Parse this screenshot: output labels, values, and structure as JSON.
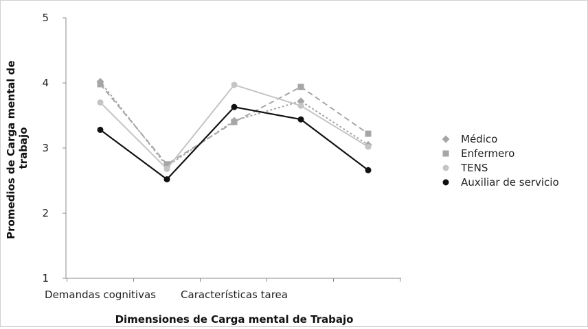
{
  "chart_data": {
    "type": "line",
    "title": "",
    "xlabel": "Dimensiones de Carga mental de Trabajo",
    "ylabel_lines": [
      "Promedios de Carga mental de",
      "trabajo"
    ],
    "ylim": [
      1,
      5
    ],
    "yticks": [
      "1",
      "2",
      "3",
      "4",
      "5"
    ],
    "x_labels": [
      "Demandas cognitivas",
      "",
      "Características tarea",
      "",
      ""
    ],
    "legend_position": "right",
    "grid": false,
    "series": [
      {
        "name": "Médico",
        "marker": "diamond",
        "color": "#a6a6a6",
        "dash": "3,3",
        "values": [
          4.02,
          2.72,
          3.42,
          3.72,
          3.05
        ]
      },
      {
        "name": "Enfermero",
        "marker": "square",
        "color": "#a6a6a6",
        "dash": "8,5",
        "values": [
          3.98,
          2.75,
          3.4,
          3.94,
          3.22
        ]
      },
      {
        "name": "TENS",
        "marker": "circle",
        "color": "#c4c4c4",
        "dash": "",
        "values": [
          3.7,
          2.68,
          3.97,
          3.65,
          3.02
        ]
      },
      {
        "name": "Auxiliar de servicio",
        "marker": "circle",
        "color": "#111111",
        "dash": "",
        "values": [
          3.28,
          2.52,
          3.63,
          3.44,
          2.66
        ]
      }
    ]
  }
}
